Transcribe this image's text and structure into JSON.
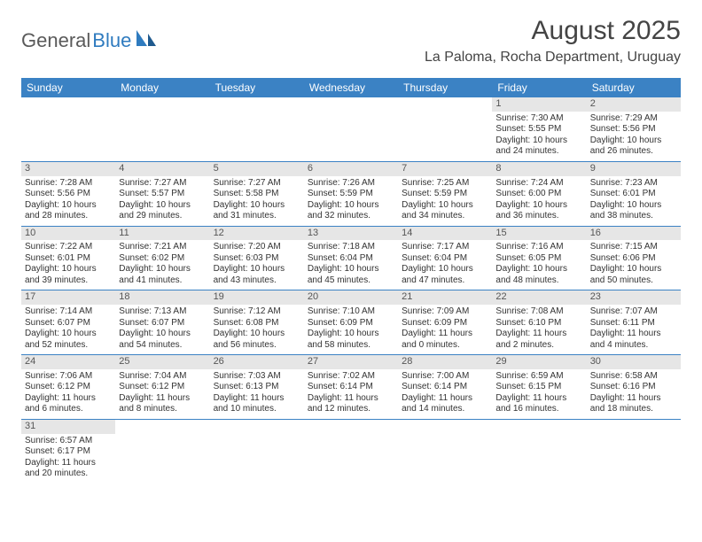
{
  "logo": {
    "text1": "General",
    "text2": "Blue"
  },
  "title": "August 2025",
  "location": "La Paloma, Rocha Department, Uruguay",
  "colors": {
    "header_bg": "#3b82c4",
    "daynum_bg": "#e6e6e6",
    "text": "#333333",
    "logo_gray": "#5a5a5a",
    "logo_blue": "#2f7bbf"
  },
  "day_labels": [
    "Sunday",
    "Monday",
    "Tuesday",
    "Wednesday",
    "Thursday",
    "Friday",
    "Saturday"
  ],
  "weeks": [
    [
      null,
      null,
      null,
      null,
      null,
      {
        "n": "1",
        "sr": "Sunrise: 7:30 AM",
        "ss": "Sunset: 5:55 PM",
        "dl": "Daylight: 10 hours and 24 minutes."
      },
      {
        "n": "2",
        "sr": "Sunrise: 7:29 AM",
        "ss": "Sunset: 5:56 PM",
        "dl": "Daylight: 10 hours and 26 minutes."
      }
    ],
    [
      {
        "n": "3",
        "sr": "Sunrise: 7:28 AM",
        "ss": "Sunset: 5:56 PM",
        "dl": "Daylight: 10 hours and 28 minutes."
      },
      {
        "n": "4",
        "sr": "Sunrise: 7:27 AM",
        "ss": "Sunset: 5:57 PM",
        "dl": "Daylight: 10 hours and 29 minutes."
      },
      {
        "n": "5",
        "sr": "Sunrise: 7:27 AM",
        "ss": "Sunset: 5:58 PM",
        "dl": "Daylight: 10 hours and 31 minutes."
      },
      {
        "n": "6",
        "sr": "Sunrise: 7:26 AM",
        "ss": "Sunset: 5:59 PM",
        "dl": "Daylight: 10 hours and 32 minutes."
      },
      {
        "n": "7",
        "sr": "Sunrise: 7:25 AM",
        "ss": "Sunset: 5:59 PM",
        "dl": "Daylight: 10 hours and 34 minutes."
      },
      {
        "n": "8",
        "sr": "Sunrise: 7:24 AM",
        "ss": "Sunset: 6:00 PM",
        "dl": "Daylight: 10 hours and 36 minutes."
      },
      {
        "n": "9",
        "sr": "Sunrise: 7:23 AM",
        "ss": "Sunset: 6:01 PM",
        "dl": "Daylight: 10 hours and 38 minutes."
      }
    ],
    [
      {
        "n": "10",
        "sr": "Sunrise: 7:22 AM",
        "ss": "Sunset: 6:01 PM",
        "dl": "Daylight: 10 hours and 39 minutes."
      },
      {
        "n": "11",
        "sr": "Sunrise: 7:21 AM",
        "ss": "Sunset: 6:02 PM",
        "dl": "Daylight: 10 hours and 41 minutes."
      },
      {
        "n": "12",
        "sr": "Sunrise: 7:20 AM",
        "ss": "Sunset: 6:03 PM",
        "dl": "Daylight: 10 hours and 43 minutes."
      },
      {
        "n": "13",
        "sr": "Sunrise: 7:18 AM",
        "ss": "Sunset: 6:04 PM",
        "dl": "Daylight: 10 hours and 45 minutes."
      },
      {
        "n": "14",
        "sr": "Sunrise: 7:17 AM",
        "ss": "Sunset: 6:04 PM",
        "dl": "Daylight: 10 hours and 47 minutes."
      },
      {
        "n": "15",
        "sr": "Sunrise: 7:16 AM",
        "ss": "Sunset: 6:05 PM",
        "dl": "Daylight: 10 hours and 48 minutes."
      },
      {
        "n": "16",
        "sr": "Sunrise: 7:15 AM",
        "ss": "Sunset: 6:06 PM",
        "dl": "Daylight: 10 hours and 50 minutes."
      }
    ],
    [
      {
        "n": "17",
        "sr": "Sunrise: 7:14 AM",
        "ss": "Sunset: 6:07 PM",
        "dl": "Daylight: 10 hours and 52 minutes."
      },
      {
        "n": "18",
        "sr": "Sunrise: 7:13 AM",
        "ss": "Sunset: 6:07 PM",
        "dl": "Daylight: 10 hours and 54 minutes."
      },
      {
        "n": "19",
        "sr": "Sunrise: 7:12 AM",
        "ss": "Sunset: 6:08 PM",
        "dl": "Daylight: 10 hours and 56 minutes."
      },
      {
        "n": "20",
        "sr": "Sunrise: 7:10 AM",
        "ss": "Sunset: 6:09 PM",
        "dl": "Daylight: 10 hours and 58 minutes."
      },
      {
        "n": "21",
        "sr": "Sunrise: 7:09 AM",
        "ss": "Sunset: 6:09 PM",
        "dl": "Daylight: 11 hours and 0 minutes."
      },
      {
        "n": "22",
        "sr": "Sunrise: 7:08 AM",
        "ss": "Sunset: 6:10 PM",
        "dl": "Daylight: 11 hours and 2 minutes."
      },
      {
        "n": "23",
        "sr": "Sunrise: 7:07 AM",
        "ss": "Sunset: 6:11 PM",
        "dl": "Daylight: 11 hours and 4 minutes."
      }
    ],
    [
      {
        "n": "24",
        "sr": "Sunrise: 7:06 AM",
        "ss": "Sunset: 6:12 PM",
        "dl": "Daylight: 11 hours and 6 minutes."
      },
      {
        "n": "25",
        "sr": "Sunrise: 7:04 AM",
        "ss": "Sunset: 6:12 PM",
        "dl": "Daylight: 11 hours and 8 minutes."
      },
      {
        "n": "26",
        "sr": "Sunrise: 7:03 AM",
        "ss": "Sunset: 6:13 PM",
        "dl": "Daylight: 11 hours and 10 minutes."
      },
      {
        "n": "27",
        "sr": "Sunrise: 7:02 AM",
        "ss": "Sunset: 6:14 PM",
        "dl": "Daylight: 11 hours and 12 minutes."
      },
      {
        "n": "28",
        "sr": "Sunrise: 7:00 AM",
        "ss": "Sunset: 6:14 PM",
        "dl": "Daylight: 11 hours and 14 minutes."
      },
      {
        "n": "29",
        "sr": "Sunrise: 6:59 AM",
        "ss": "Sunset: 6:15 PM",
        "dl": "Daylight: 11 hours and 16 minutes."
      },
      {
        "n": "30",
        "sr": "Sunrise: 6:58 AM",
        "ss": "Sunset: 6:16 PM",
        "dl": "Daylight: 11 hours and 18 minutes."
      }
    ],
    [
      {
        "n": "31",
        "sr": "Sunrise: 6:57 AM",
        "ss": "Sunset: 6:17 PM",
        "dl": "Daylight: 11 hours and 20 minutes."
      },
      null,
      null,
      null,
      null,
      null,
      null
    ]
  ]
}
